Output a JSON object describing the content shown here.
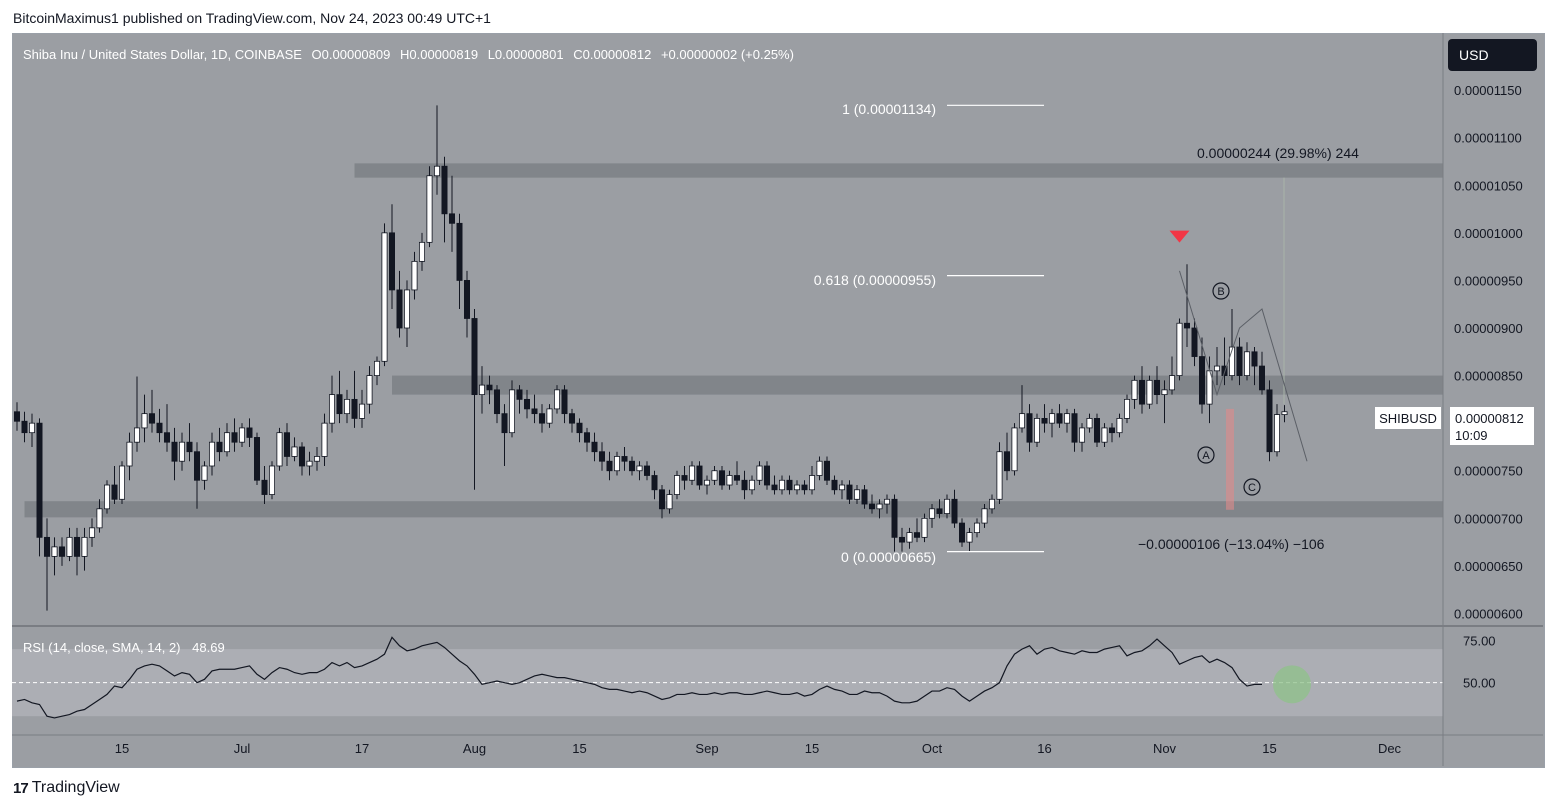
{
  "attribution": "BitcoinMaximus1 published on TradingView.com, Nov 24, 2023 00:49 UTC+1",
  "legend": {
    "title": "Shiba Inu / United States Dollar, 1D, COINBASE",
    "o_label": "O",
    "o_value": "0.00000809",
    "h_label": "H",
    "h_value": "0.00000819",
    "l_label": "L",
    "l_value": "0.00000801",
    "c_label": "C",
    "c_value": "0.00000812",
    "change": "+0.00000002 (+0.25%)"
  },
  "currency_button": "USD",
  "price_label": {
    "symbol": "SHIBUSD",
    "price": "0.00000812",
    "countdown": "10:09"
  },
  "annotations": {
    "fib_1": "1 (0.00001134)",
    "fib_618": "0.618 (0.00000955)",
    "fib_0": "0 (0.00000665)",
    "measure_up": "0.00000244 (29.98%) 244",
    "measure_down": "−0.00000106 (−13.04%) −106",
    "wave_a": "A",
    "wave_b": "B",
    "wave_c": "C"
  },
  "rsi_legend": {
    "label": "RSI (14, close, SMA, 14, 2)",
    "value": "48.69"
  },
  "footer": {
    "brand": "TradingView",
    "logo": "17"
  },
  "colors": {
    "background": "#9b9ea3",
    "candle_up": "#ffffff",
    "candle_down": "#131722",
    "resistance_zone": "#7d8086",
    "support_zone": "#7d8086",
    "marker": "#f23645",
    "rsi_band": "#b0b2b8",
    "highlight_circle": "#8fc28a"
  },
  "chart_data": {
    "type": "candlestick",
    "title": "Shiba Inu / United States Dollar, 1D, COINBASE",
    "ylim": [
      5.9e-06,
      1.21e-05
    ],
    "y_ticks": [
      "0.00001150",
      "0.00001100",
      "0.00001050",
      "0.00001000",
      "0.00000950",
      "0.00000900",
      "0.00000850",
      "0.00000800",
      "0.00000750",
      "0.00000700",
      "0.00000650",
      "0.00000600"
    ],
    "x_ticks": [
      "15",
      "Jul",
      "17",
      "Aug",
      "15",
      "Sep",
      "15",
      "Oct",
      "16",
      "Nov",
      "15",
      "Dec"
    ],
    "x_tick_days": [
      14,
      30,
      46,
      61,
      75,
      92,
      106,
      122,
      137,
      153,
      167,
      183
    ],
    "start_date": "2023-06-01",
    "zones": [
      {
        "name": "resistance-zone-upper",
        "from": 1.058e-05,
        "to": 1.073e-05,
        "start_day": 45
      },
      {
        "name": "resistance-zone-mid",
        "from": 8.3e-06,
        "to": 8.5e-06,
        "start_day": 50
      },
      {
        "name": "support-zone",
        "from": 7.01e-06,
        "to": 7.18e-06,
        "start_day": 1
      }
    ],
    "fib_levels": [
      {
        "label": "1 (0.00001134)",
        "value": 1.134e-05
      },
      {
        "label": "0.618 (0.00000955)",
        "value": 9.55e-06
      },
      {
        "label": "0 (0.00000665)",
        "value": 6.65e-06
      }
    ],
    "ohlc": [
      [
        8.12e-06,
        8.22e-06,
        7.92e-06,
        8.02e-06
      ],
      [
        8.02e-06,
        8.12e-06,
        7.8e-06,
        7.9e-06
      ],
      [
        7.9e-06,
        8.1e-06,
        7.75e-06,
        8e-06
      ],
      [
        8e-06,
        8.05e-06,
        6.6e-06,
        6.8e-06
      ],
      [
        6.8e-06,
        7e-06,
        6.03e-06,
        6.6e-06
      ],
      [
        6.6e-06,
        6.8e-06,
        6.4e-06,
        6.7e-06
      ],
      [
        6.7e-06,
        6.8e-06,
        6.5e-06,
        6.6e-06
      ],
      [
        6.6e-06,
        6.9e-06,
        6.55e-06,
        6.8e-06
      ],
      [
        6.8e-06,
        6.9e-06,
        6.4e-06,
        6.6e-06
      ],
      [
        6.6e-06,
        6.9e-06,
        6.45e-06,
        6.8e-06
      ],
      [
        6.8e-06,
        7e-06,
        6.7e-06,
        6.9e-06
      ],
      [
        6.9e-06,
        7.2e-06,
        6.85e-06,
        7.1e-06
      ],
      [
        7.1e-06,
        7.4e-06,
        7.05e-06,
        7.35e-06
      ],
      [
        7.35e-06,
        7.55e-06,
        7.15e-06,
        7.2e-06
      ],
      [
        7.2e-06,
        7.6e-06,
        7.15e-06,
        7.55e-06
      ],
      [
        7.55e-06,
        7.9e-06,
        7.4e-06,
        7.8e-06
      ],
      [
        7.8e-06,
        8.49e-06,
        7.7e-06,
        7.95e-06
      ],
      [
        7.95e-06,
        8.3e-06,
        7.8e-06,
        8.1e-06
      ],
      [
        8.1e-06,
        8.35e-06,
        7.9e-06,
        8e-06
      ],
      [
        8e-06,
        8.15e-06,
        7.8e-06,
        7.9e-06
      ],
      [
        7.9e-06,
        8.2e-06,
        7.7e-06,
        7.8e-06
      ],
      [
        7.8e-06,
        7.95e-06,
        7.4e-06,
        7.6e-06
      ],
      [
        7.6e-06,
        7.9e-06,
        7.5e-06,
        7.8e-06
      ],
      [
        7.8e-06,
        8e-06,
        7.6e-06,
        7.7e-06
      ],
      [
        7.7e-06,
        7.8e-06,
        7.1e-06,
        7.4e-06
      ],
      [
        7.4e-06,
        7.6e-06,
        7.3e-06,
        7.55e-06
      ],
      [
        7.55e-06,
        7.9e-06,
        7.45e-06,
        7.8e-06
      ],
      [
        7.8e-06,
        7.95e-06,
        7.6e-06,
        7.7e-06
      ],
      [
        7.7e-06,
        8e-06,
        7.65e-06,
        7.9e-06
      ],
      [
        7.9e-06,
        8.05e-06,
        7.7e-06,
        7.8e-06
      ],
      [
        7.8e-06,
        8e-06,
        7.75e-06,
        7.95e-06
      ],
      [
        7.95e-06,
        8.05e-06,
        7.75e-06,
        7.85e-06
      ],
      [
        7.85e-06,
        7.9e-06,
        7.35e-06,
        7.4e-06
      ],
      [
        7.4e-06,
        7.55e-06,
        7.15e-06,
        7.25e-06
      ],
      [
        7.25e-06,
        7.6e-06,
        7.2e-06,
        7.55e-06
      ],
      [
        7.55e-06,
        7.95e-06,
        7.5e-06,
        7.9e-06
      ],
      [
        7.9e-06,
        8e-06,
        7.55e-06,
        7.65e-06
      ],
      [
        7.65e-06,
        7.85e-06,
        7.6e-06,
        7.75e-06
      ],
      [
        7.75e-06,
        7.8e-06,
        7.45e-06,
        7.55e-06
      ],
      [
        7.55e-06,
        7.7e-06,
        7.45e-06,
        7.6e-06
      ],
      [
        7.6e-06,
        7.75e-06,
        7.5e-06,
        7.65e-06
      ],
      [
        7.65e-06,
        8.1e-06,
        7.55e-06,
        8e-06
      ],
      [
        8e-06,
        8.5e-06,
        7.9e-06,
        8.3e-06
      ],
      [
        8.3e-06,
        8.55e-06,
        8e-06,
        8.1e-06
      ],
      [
        8.1e-06,
        8.35e-06,
        8e-06,
        8.25e-06
      ],
      [
        8.25e-06,
        8.55e-06,
        7.95e-06,
        8.05e-06
      ],
      [
        8.05e-06,
        8.35e-06,
        7.95e-06,
        8.2e-06
      ],
      [
        8.2e-06,
        8.6e-06,
        8.1e-06,
        8.5e-06
      ],
      [
        8.5e-06,
        8.7e-06,
        8.4e-06,
        8.65e-06
      ],
      [
        8.65e-06,
        1.01e-05,
        8.6e-06,
        1e-05
      ],
      [
        1e-05,
        1.03e-05,
        9.2e-06,
        9.4e-06
      ],
      [
        9.4e-06,
        9.6e-06,
        8.9e-06,
        9e-06
      ],
      [
        9e-06,
        9.5e-06,
        8.8e-06,
        9.4e-06
      ],
      [
        9.4e-06,
        9.8e-06,
        9.3e-06,
        9.7e-06
      ],
      [
        9.7e-06,
        1e-05,
        9.6e-06,
        9.9e-06
      ],
      [
        9.9e-06,
        1.07e-05,
        9.85e-06,
        1.06e-05
      ],
      [
        1.06e-05,
        1.134e-05,
        1.04e-05,
        1.07e-05
      ],
      [
        1.07e-05,
        1.08e-05,
        9.9e-06,
        1.02e-05
      ],
      [
        1.02e-05,
        1.06e-05,
        9.8e-06,
        1.01e-05
      ],
      [
        1.01e-05,
        1.02e-05,
        9.2e-06,
        9.5e-06
      ],
      [
        9.5e-06,
        9.6e-06,
        8.9e-06,
        9.1e-06
      ],
      [
        9.1e-06,
        9.2e-06,
        7.3e-06,
        8.3e-06
      ],
      [
        8.3e-06,
        8.6e-06,
        8.1e-06,
        8.4e-06
      ],
      [
        8.4e-06,
        8.5e-06,
        8.2e-06,
        8.35e-06
      ],
      [
        8.35e-06,
        8.4e-06,
        8e-06,
        8.1e-06
      ],
      [
        8.1e-06,
        8.2e-06,
        7.55e-06,
        7.9e-06
      ],
      [
        7.9e-06,
        8.45e-06,
        7.85e-06,
        8.35e-06
      ],
      [
        8.35e-06,
        8.4e-06,
        8.1e-06,
        8.25e-06
      ],
      [
        8.25e-06,
        8.35e-06,
        8.05e-06,
        8.15e-06
      ],
      [
        8.15e-06,
        8.3e-06,
        8e-06,
        8.1e-06
      ],
      [
        8.1e-06,
        8.2e-06,
        7.9e-06,
        8e-06
      ],
      [
        8e-06,
        8.2e-06,
        7.95e-06,
        8.15e-06
      ],
      [
        8.15e-06,
        8.4e-06,
        8.1e-06,
        8.35e-06
      ],
      [
        8.35e-06,
        8.4e-06,
        8e-06,
        8.1e-06
      ],
      [
        8.1e-06,
        8.15e-06,
        7.9e-06,
        8e-06
      ],
      [
        8e-06,
        8.05e-06,
        7.8e-06,
        7.9e-06
      ],
      [
        7.9e-06,
        7.95e-06,
        7.7e-06,
        7.8e-06
      ],
      [
        7.8e-06,
        7.9e-06,
        7.6e-06,
        7.7e-06
      ],
      [
        7.7e-06,
        7.8e-06,
        7.5e-06,
        7.6e-06
      ],
      [
        7.6e-06,
        7.7e-06,
        7.4e-06,
        7.5e-06
      ],
      [
        7.5e-06,
        7.7e-06,
        7.45e-06,
        7.65e-06
      ],
      [
        7.65e-06,
        7.75e-06,
        7.5e-06,
        7.6e-06
      ],
      [
        7.6e-06,
        7.65e-06,
        7.45e-06,
        7.5e-06
      ],
      [
        7.5e-06,
        7.6e-06,
        7.4e-06,
        7.55e-06
      ],
      [
        7.55e-06,
        7.6e-06,
        7.4e-06,
        7.45e-06
      ],
      [
        7.45e-06,
        7.5e-06,
        7.2e-06,
        7.3e-06
      ],
      [
        7.3e-06,
        7.35e-06,
        7e-06,
        7.1e-06
      ],
      [
        7.1e-06,
        7.3e-06,
        7.05e-06,
        7.25e-06
      ],
      [
        7.25e-06,
        7.5e-06,
        7.2e-06,
        7.45e-06
      ],
      [
        7.45e-06,
        7.55e-06,
        7.3e-06,
        7.4e-06
      ],
      [
        7.4e-06,
        7.6e-06,
        7.35e-06,
        7.55e-06
      ],
      [
        7.55e-06,
        7.6e-06,
        7.3e-06,
        7.35e-06
      ],
      [
        7.35e-06,
        7.45e-06,
        7.25e-06,
        7.4e-06
      ],
      [
        7.4e-06,
        7.55e-06,
        7.35e-06,
        7.5e-06
      ],
      [
        7.5e-06,
        7.55e-06,
        7.3e-06,
        7.35e-06
      ],
      [
        7.35e-06,
        7.5e-06,
        7.3e-06,
        7.45e-06
      ],
      [
        7.45e-06,
        7.6e-06,
        7.35e-06,
        7.4e-06
      ],
      [
        7.4e-06,
        7.5e-06,
        7.2e-06,
        7.3e-06
      ],
      [
        7.3e-06,
        7.45e-06,
        7.25e-06,
        7.4e-06
      ],
      [
        7.4e-06,
        7.6e-06,
        7.35e-06,
        7.55e-06
      ],
      [
        7.55e-06,
        7.6e-06,
        7.3e-06,
        7.35e-06
      ],
      [
        7.35e-06,
        7.45e-06,
        7.25e-06,
        7.3e-06
      ],
      [
        7.3e-06,
        7.45e-06,
        7.25e-06,
        7.4e-06
      ],
      [
        7.4e-06,
        7.45e-06,
        7.25e-06,
        7.3e-06
      ],
      [
        7.3e-06,
        7.4e-06,
        7.25e-06,
        7.35e-06
      ],
      [
        7.35e-06,
        7.4e-06,
        7.25e-06,
        7.3e-06
      ],
      [
        7.3e-06,
        7.55e-06,
        7.25e-06,
        7.45e-06
      ],
      [
        7.45e-06,
        7.65e-06,
        7.4e-06,
        7.6e-06
      ],
      [
        7.6e-06,
        7.65e-06,
        7.35e-06,
        7.4e-06
      ],
      [
        7.4e-06,
        7.45e-06,
        7.25e-06,
        7.3e-06
      ],
      [
        7.3e-06,
        7.4e-06,
        7.2e-06,
        7.35e-06
      ],
      [
        7.35e-06,
        7.4e-06,
        7.15e-06,
        7.2e-06
      ],
      [
        7.2e-06,
        7.35e-06,
        7.15e-06,
        7.3e-06
      ],
      [
        7.3e-06,
        7.35e-06,
        7.1e-06,
        7.15e-06
      ],
      [
        7.15e-06,
        7.25e-06,
        7.05e-06,
        7.1e-06
      ],
      [
        7.1e-06,
        7.2e-06,
        7e-06,
        7.15e-06
      ],
      [
        7.15e-06,
        7.25e-06,
        7.05e-06,
        7.2e-06
      ],
      [
        7.2e-06,
        7.25e-06,
        6.65e-06,
        6.8e-06
      ],
      [
        6.8e-06,
        6.9e-06,
        6.65e-06,
        6.75e-06
      ],
      [
        6.75e-06,
        6.9e-06,
        6.68e-06,
        6.85e-06
      ],
      [
        6.85e-06,
        7e-06,
        6.75e-06,
        6.8e-06
      ],
      [
        6.8e-06,
        7.05e-06,
        6.75e-06,
        7e-06
      ],
      [
        7e-06,
        7.15e-06,
        6.9e-06,
        7.1e-06
      ],
      [
        7.1e-06,
        7.2e-06,
        7e-06,
        7.05e-06
      ],
      [
        7.05e-06,
        7.25e-06,
        7e-06,
        7.2e-06
      ],
      [
        7.2e-06,
        7.3e-06,
        6.9e-06,
        6.95e-06
      ],
      [
        6.95e-06,
        7e-06,
        6.7e-06,
        6.75e-06
      ],
      [
        6.75e-06,
        6.9e-06,
        6.65e-06,
        6.85e-06
      ],
      [
        6.85e-06,
        7e-06,
        6.8e-06,
        6.95e-06
      ],
      [
        6.95e-06,
        7.15e-06,
        6.9e-06,
        7.1e-06
      ],
      [
        7.1e-06,
        7.25e-06,
        7.05e-06,
        7.2e-06
      ],
      [
        7.2e-06,
        7.8e-06,
        7.15e-06,
        7.7e-06
      ],
      [
        7.7e-06,
        7.9e-06,
        7.4e-06,
        7.5e-06
      ],
      [
        7.5e-06,
        8e-06,
        7.45e-06,
        7.95e-06
      ],
      [
        7.95e-06,
        8.4e-06,
        7.9e-06,
        8.1e-06
      ],
      [
        8.1e-06,
        8.2e-06,
        7.7e-06,
        7.8e-06
      ],
      [
        7.8e-06,
        8.1e-06,
        7.75e-06,
        8.05e-06
      ],
      [
        8.05e-06,
        8.2e-06,
        7.9e-06,
        8e-06
      ],
      [
        8e-06,
        8.15e-06,
        7.85e-06,
        8.1e-06
      ],
      [
        8.1e-06,
        8.2e-06,
        7.95e-06,
        8e-06
      ],
      [
        8e-06,
        8.15e-06,
        7.9e-06,
        8.1e-06
      ],
      [
        8.1e-06,
        8.15e-06,
        7.7e-06,
        7.8e-06
      ],
      [
        7.8e-06,
        8e-06,
        7.7e-06,
        7.95e-06
      ],
      [
        7.95e-06,
        8.1e-06,
        7.9e-06,
        8.05e-06
      ],
      [
        8.05e-06,
        8.1e-06,
        7.75e-06,
        7.8e-06
      ],
      [
        7.8e-06,
        8e-06,
        7.75e-06,
        7.95e-06
      ],
      [
        7.95e-06,
        8e-06,
        7.8e-06,
        7.9e-06
      ],
      [
        7.9e-06,
        8.1e-06,
        7.85e-06,
        8.05e-06
      ],
      [
        8.05e-06,
        8.3e-06,
        8e-06,
        8.25e-06
      ],
      [
        8.25e-06,
        8.5e-06,
        8.15e-06,
        8.45e-06
      ],
      [
        8.45e-06,
        8.6e-06,
        8.1e-06,
        8.2e-06
      ],
      [
        8.2e-06,
        8.5e-06,
        8.15e-06,
        8.45e-06
      ],
      [
        8.45e-06,
        8.6e-06,
        8.2e-06,
        8.3e-06
      ],
      [
        8.3e-06,
        8.45e-06,
        8e-06,
        8.35e-06
      ],
      [
        8.35e-06,
        8.7e-06,
        8.3e-06,
        8.5e-06
      ],
      [
        8.5e-06,
        9.1e-06,
        8.45e-06,
        9.05e-06
      ],
      [
        9.05e-06,
        9.67e-06,
        8.8e-06,
        9e-06
      ],
      [
        9e-06,
        9.1e-06,
        8.6e-06,
        8.7e-06
      ],
      [
        8.7e-06,
        8.9e-06,
        8.1e-06,
        8.2e-06
      ],
      [
        8.2e-06,
        8.7e-06,
        8e-06,
        8.55e-06
      ],
      [
        8.55e-06,
        8.8e-06,
        8.4e-06,
        8.6e-06
      ],
      [
        8.6e-06,
        8.9e-06,
        8.4e-06,
        8.5e-06
      ],
      [
        8.5e-06,
        9.2e-06,
        8.45e-06,
        8.8e-06
      ],
      [
        8.8e-06,
        8.9e-06,
        8.4e-06,
        8.5e-06
      ],
      [
        8.5e-06,
        8.85e-06,
        8.45e-06,
        8.75e-06
      ],
      [
        8.75e-06,
        8.8e-06,
        8.4e-06,
        8.6e-06
      ],
      [
        8.6e-06,
        8.75e-06,
        8.3e-06,
        8.35e-06
      ],
      [
        8.35e-06,
        8.45e-06,
        7.6e-06,
        7.7e-06
      ],
      [
        7.7e-06,
        8.2e-06,
        7.65e-06,
        8.09e-06
      ],
      [
        8.09e-06,
        8.19e-06,
        8.01e-06,
        8.12e-06
      ]
    ],
    "current_price": 8.12e-06,
    "rsi": {
      "label": "RSI (14, close, SMA, 14, 2)",
      "current": 48.69,
      "ylim": [
        20,
        82
      ],
      "band": [
        30,
        70
      ],
      "midline": 50,
      "y_ticks": [
        "75.00",
        "50.00"
      ],
      "values": [
        39,
        40,
        38,
        37,
        30,
        29,
        30,
        31,
        33,
        34,
        37,
        40,
        43,
        48,
        47,
        52,
        58,
        60,
        61,
        60,
        57,
        54,
        56,
        55,
        50,
        52,
        57,
        58,
        58,
        58,
        59,
        60,
        55,
        52,
        56,
        59,
        58,
        56,
        55,
        56,
        56,
        58,
        62,
        60,
        62,
        59,
        60,
        62,
        64,
        67,
        77,
        72,
        69,
        70,
        72,
        73,
        74,
        71,
        67,
        63,
        60,
        55,
        49,
        50,
        51,
        50,
        49,
        50,
        52,
        54,
        55,
        54,
        53,
        53,
        52,
        51,
        50,
        49,
        47,
        46,
        46,
        45,
        44,
        45,
        44,
        42,
        40,
        41,
        43,
        43,
        44,
        43,
        43,
        44,
        43,
        44,
        44,
        43,
        43,
        44,
        45,
        44,
        43,
        43,
        44,
        42,
        43,
        46,
        48,
        46,
        45,
        43,
        43,
        45,
        44,
        44,
        42,
        39,
        38,
        38,
        39,
        42,
        45,
        45,
        47,
        46,
        42,
        39,
        42,
        45,
        47,
        50,
        60,
        67,
        70,
        72,
        67,
        70,
        71,
        69,
        68,
        67,
        69,
        68,
        68,
        70,
        71,
        72,
        66,
        68,
        69,
        72,
        76,
        72,
        68,
        61,
        63,
        65,
        66,
        62,
        64,
        62,
        59,
        52,
        48,
        49,
        49
      ]
    }
  }
}
